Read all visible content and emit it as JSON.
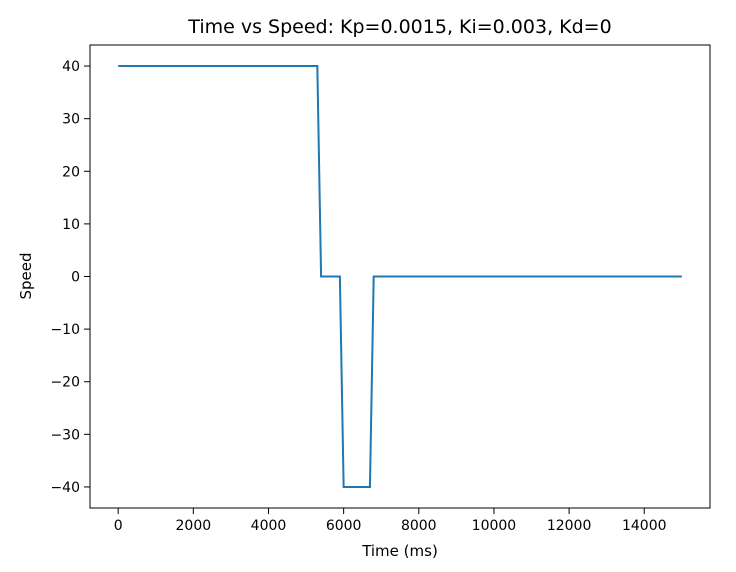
{
  "chart_data": {
    "type": "line",
    "title": "Time vs Speed: Kp=0.0015, Ki=0.003, Kd=0",
    "xlabel": "Time (ms)",
    "ylabel": "Speed",
    "xlim": [
      -750,
      15750
    ],
    "ylim": [
      -44,
      44
    ],
    "xticks": [
      0,
      2000,
      4000,
      6000,
      8000,
      10000,
      12000,
      14000
    ],
    "xtick_labels": [
      "0",
      "2000",
      "4000",
      "6000",
      "8000",
      "10000",
      "12000",
      "14000"
    ],
    "yticks": [
      40,
      30,
      20,
      10,
      0,
      -10,
      -20,
      -30,
      -40
    ],
    "ytick_labels": [
      "40",
      "30",
      "20",
      "10",
      "0",
      "−10",
      "−20",
      "−30",
      "−40"
    ],
    "grid": false,
    "legend": "none",
    "series": [
      {
        "color": "#1f77b4",
        "x": [
          0,
          5300,
          5400,
          5900,
          6000,
          6700,
          6800,
          15000
        ],
        "y": [
          40,
          40,
          0,
          0,
          -40,
          -40,
          0,
          0
        ]
      }
    ]
  }
}
